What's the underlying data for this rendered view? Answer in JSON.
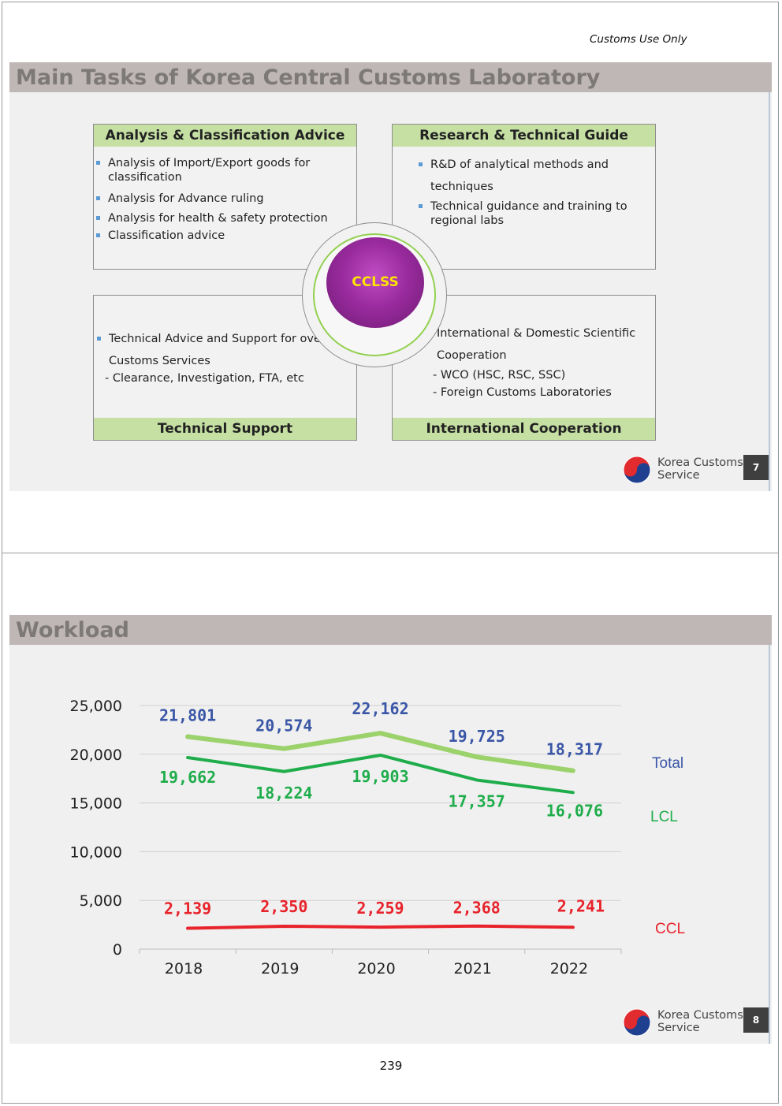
{
  "header_note": "Customs Use Only",
  "slide1": {
    "title": "Main Tasks of Korea Central Customs Laboratory",
    "center_label": "CCLSS",
    "boxes": {
      "analysis": {
        "title": "Analysis & Classification Advice",
        "items": [
          "Analysis of Import/Export goods for",
          "classification",
          "Analysis for Advance ruling",
          "Analysis for health & safety protection",
          "Classification advice"
        ]
      },
      "research": {
        "title": "Research & Technical Guide",
        "items": [
          "R&D of analytical methods and",
          "techniques",
          "Technical guidance and training to",
          "regional labs"
        ]
      },
      "support": {
        "title": "Technical Support",
        "items": [
          "Technical Advice and Support for overall",
          "Customs Services",
          "- Clearance, Investigation,  FTA, etc"
        ]
      },
      "international": {
        "title": "International Cooperation",
        "items": [
          "International & Domestic Scientific",
          "Cooperation",
          "- WCO (HSC, RSC, SSC)",
          "- Foreign Customs Laboratories"
        ]
      }
    },
    "logo": {
      "line1": "Korea Customs",
      "line2": "Service"
    },
    "page_number": "7"
  },
  "slide2": {
    "title": "Workload",
    "logo": {
      "line1": "Korea Customs",
      "line2": "Service"
    },
    "page_number": "8"
  },
  "chart_data": {
    "type": "line",
    "title": "",
    "xlabel": "",
    "ylabel": "",
    "categories": [
      "2018",
      "2019",
      "2020",
      "2021",
      "2022"
    ],
    "ylim": [
      0,
      25000
    ],
    "yticks": [
      "25,000",
      "20,000",
      "15,000",
      "10,000",
      "5,000",
      "0"
    ],
    "ytick_values": [
      25000,
      20000,
      15000,
      10000,
      5000,
      0
    ],
    "grid": true,
    "series": [
      {
        "name": "Total",
        "values": [
          21801,
          20574,
          22162,
          19725,
          18317
        ],
        "labels": [
          "21,801",
          "20,574",
          "22,162",
          "19,725",
          "18,317"
        ],
        "line_color": "#9bd26b",
        "label_color": "#3a56a6",
        "legend_color": "#3a56a6"
      },
      {
        "name": "LCL",
        "values": [
          19662,
          18224,
          19903,
          17357,
          16076
        ],
        "labels": [
          "19,662",
          "18,224",
          "19,903",
          "17,357",
          "16,076"
        ],
        "line_color": "#1fad4b",
        "label_color": "#1fad4b",
        "legend_color": "#1fad4b"
      },
      {
        "name": "CCL",
        "values": [
          2139,
          2350,
          2259,
          2368,
          2241
        ],
        "labels": [
          "2,139",
          "2,350",
          "2,259",
          "2,368",
          "2,241"
        ],
        "line_color": "#e8232b",
        "label_color": "#e8232b",
        "legend_color": "#e8232b"
      }
    ]
  },
  "footer_page_number": "239"
}
